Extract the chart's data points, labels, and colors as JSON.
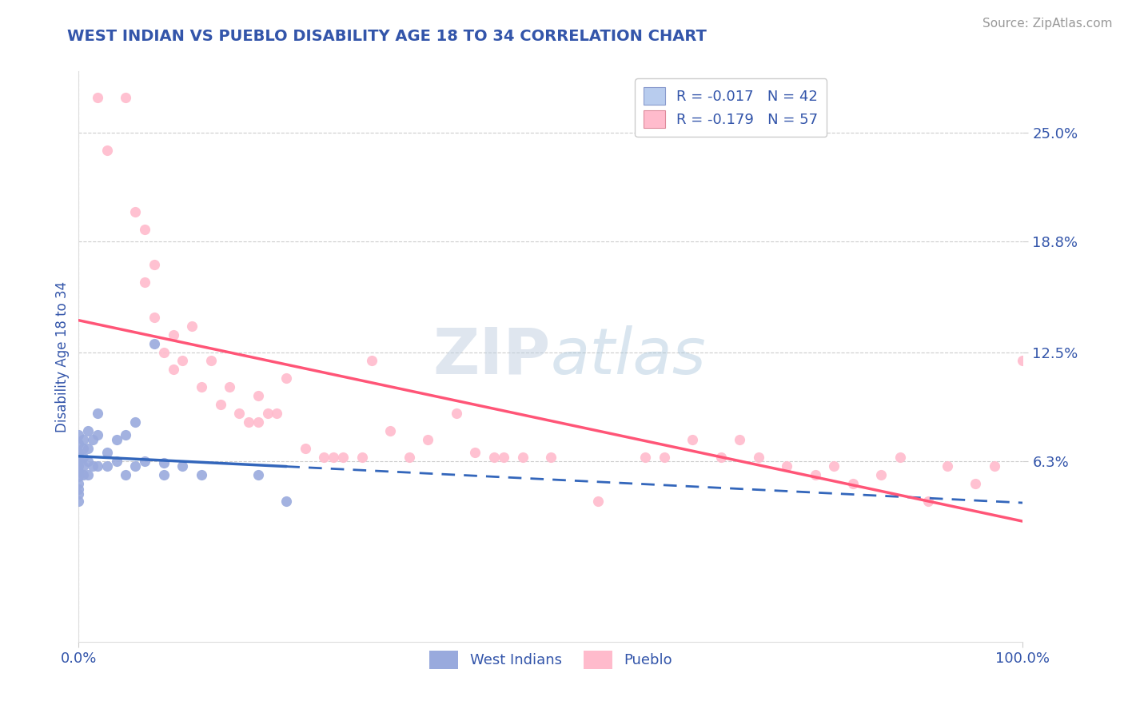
{
  "title": "WEST INDIAN VS PUEBLO DISABILITY AGE 18 TO 34 CORRELATION CHART",
  "source_text": "Source: ZipAtlas.com",
  "ylabel": "Disability Age 18 to 34",
  "x_tick_labels": [
    "0.0%",
    "100.0%"
  ],
  "y_tick_labels": [
    "6.3%",
    "12.5%",
    "18.8%",
    "25.0%"
  ],
  "y_tick_values": [
    0.063,
    0.125,
    0.188,
    0.25
  ],
  "xlim": [
    0.0,
    1.0
  ],
  "ylim": [
    -0.04,
    0.285
  ],
  "title_color": "#3355aa",
  "axis_label_color": "#3355aa",
  "tick_label_color": "#3355aa",
  "source_color": "#999999",
  "grid_color": "#cccccc",
  "background_color": "#ffffff",
  "legend_label1": "R = -0.017   N = 42",
  "legend_label2": "R = -0.179   N = 57",
  "legend_color1": "#b8ccee",
  "legend_color2": "#ffbbcc",
  "scatter_color1": "#99aadd",
  "scatter_color2": "#ffbbcc",
  "line_color1": "#3366bb",
  "line_color2": "#ff5577",
  "watermark_color": "#c8d8e8",
  "west_indian_x": [
    0.0,
    0.0,
    0.0,
    0.0,
    0.0,
    0.0,
    0.0,
    0.0,
    0.0,
    0.0,
    0.0,
    0.0,
    0.005,
    0.005,
    0.005,
    0.005,
    0.005,
    0.01,
    0.01,
    0.01,
    0.01,
    0.015,
    0.015,
    0.02,
    0.02,
    0.02,
    0.03,
    0.03,
    0.04,
    0.04,
    0.05,
    0.05,
    0.06,
    0.06,
    0.07,
    0.08,
    0.09,
    0.09,
    0.11,
    0.13,
    0.19,
    0.22
  ],
  "west_indian_y": [
    0.078,
    0.073,
    0.068,
    0.065,
    0.063,
    0.06,
    0.057,
    0.054,
    0.05,
    0.047,
    0.044,
    0.04,
    0.075,
    0.07,
    0.065,
    0.06,
    0.055,
    0.08,
    0.07,
    0.063,
    0.055,
    0.075,
    0.06,
    0.09,
    0.078,
    0.06,
    0.068,
    0.06,
    0.075,
    0.063,
    0.078,
    0.055,
    0.085,
    0.06,
    0.063,
    0.13,
    0.062,
    0.055,
    0.06,
    0.055,
    0.055,
    0.04
  ],
  "pueblo_x": [
    0.02,
    0.03,
    0.05,
    0.06,
    0.07,
    0.07,
    0.08,
    0.08,
    0.09,
    0.1,
    0.1,
    0.11,
    0.12,
    0.13,
    0.14,
    0.15,
    0.16,
    0.17,
    0.18,
    0.19,
    0.19,
    0.2,
    0.21,
    0.22,
    0.24,
    0.26,
    0.27,
    0.28,
    0.3,
    0.31,
    0.33,
    0.35,
    0.37,
    0.4,
    0.42,
    0.44,
    0.45,
    0.47,
    0.5,
    0.55,
    0.6,
    0.62,
    0.65,
    0.68,
    0.7,
    0.72,
    0.75,
    0.78,
    0.8,
    0.82,
    0.85,
    0.87,
    0.9,
    0.92,
    0.95,
    0.97,
    1.0
  ],
  "pueblo_y": [
    0.27,
    0.24,
    0.27,
    0.205,
    0.195,
    0.165,
    0.175,
    0.145,
    0.125,
    0.135,
    0.115,
    0.12,
    0.14,
    0.105,
    0.12,
    0.095,
    0.105,
    0.09,
    0.085,
    0.1,
    0.085,
    0.09,
    0.09,
    0.11,
    0.07,
    0.065,
    0.065,
    0.065,
    0.065,
    0.12,
    0.08,
    0.065,
    0.075,
    0.09,
    0.068,
    0.065,
    0.065,
    0.065,
    0.065,
    0.04,
    0.065,
    0.065,
    0.075,
    0.065,
    0.075,
    0.065,
    0.06,
    0.055,
    0.06,
    0.05,
    0.055,
    0.065,
    0.04,
    0.06,
    0.05,
    0.06,
    0.12
  ]
}
